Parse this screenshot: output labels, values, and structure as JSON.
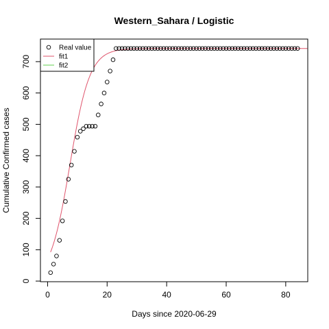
{
  "chart_data": {
    "type": "scatter",
    "title": "Western_Sahara / Logistic",
    "xlabel": "Days since 2020-06-29",
    "ylabel": "Cumulative Confirmed cases",
    "xlim": [
      -2.4,
      87.4
    ],
    "ylim": [
      -2,
      772
    ],
    "xticks": [
      0,
      20,
      40,
      60,
      80
    ],
    "yticks": [
      0,
      100,
      200,
      300,
      400,
      500,
      600,
      700
    ],
    "legend": {
      "position": "top-left",
      "entries": [
        {
          "label": "Real value",
          "symbol": "circle",
          "color": "#000000"
        },
        {
          "label": "fit1",
          "symbol": "line",
          "color": "#DF536B"
        },
        {
          "label": "fit2",
          "symbol": "line",
          "color": "#61D04F"
        }
      ]
    },
    "series": [
      {
        "name": "Real value",
        "kind": "points",
        "x": [
          1,
          2,
          3,
          4,
          5,
          6,
          7,
          8,
          9,
          10,
          11,
          12,
          13,
          14,
          15,
          16,
          17,
          18,
          19,
          20,
          21,
          22,
          23,
          24,
          25,
          26,
          27,
          28,
          29,
          30,
          31,
          32,
          33,
          34,
          35,
          36,
          37,
          38,
          39,
          40,
          41,
          42,
          43,
          44,
          45,
          46,
          47,
          48,
          49,
          50,
          51,
          52,
          53,
          54,
          55,
          56,
          57,
          58,
          59,
          60,
          61,
          62,
          63,
          64,
          65,
          66,
          67,
          68,
          69,
          70,
          71,
          72,
          73,
          74,
          75,
          76,
          77,
          78,
          79,
          80,
          81,
          82,
          83,
          84
        ],
        "y": [
          27,
          54,
          80,
          130,
          192,
          254,
          325,
          370,
          414,
          459,
          478,
          486,
          494,
          494,
          494,
          494,
          530,
          565,
          600,
          635,
          670,
          706,
          742,
          742,
          742,
          742,
          742,
          742,
          742,
          742,
          742,
          742,
          742,
          742,
          742,
          742,
          742,
          742,
          742,
          742,
          742,
          742,
          742,
          742,
          742,
          742,
          742,
          742,
          742,
          742,
          742,
          742,
          742,
          742,
          742,
          742,
          742,
          742,
          742,
          742,
          742,
          742,
          742,
          742,
          742,
          742,
          742,
          742,
          742,
          742,
          742,
          742,
          742,
          742,
          742,
          742,
          742,
          742,
          742,
          742,
          742,
          742,
          742,
          742
        ]
      },
      {
        "name": "fit1",
        "kind": "line",
        "color": "#DF536B",
        "model": "logistic",
        "params": {
          "K": 742,
          "r": 0.3,
          "t0": 7.5
        },
        "x_range": [
          1,
          87.4
        ]
      }
    ]
  }
}
